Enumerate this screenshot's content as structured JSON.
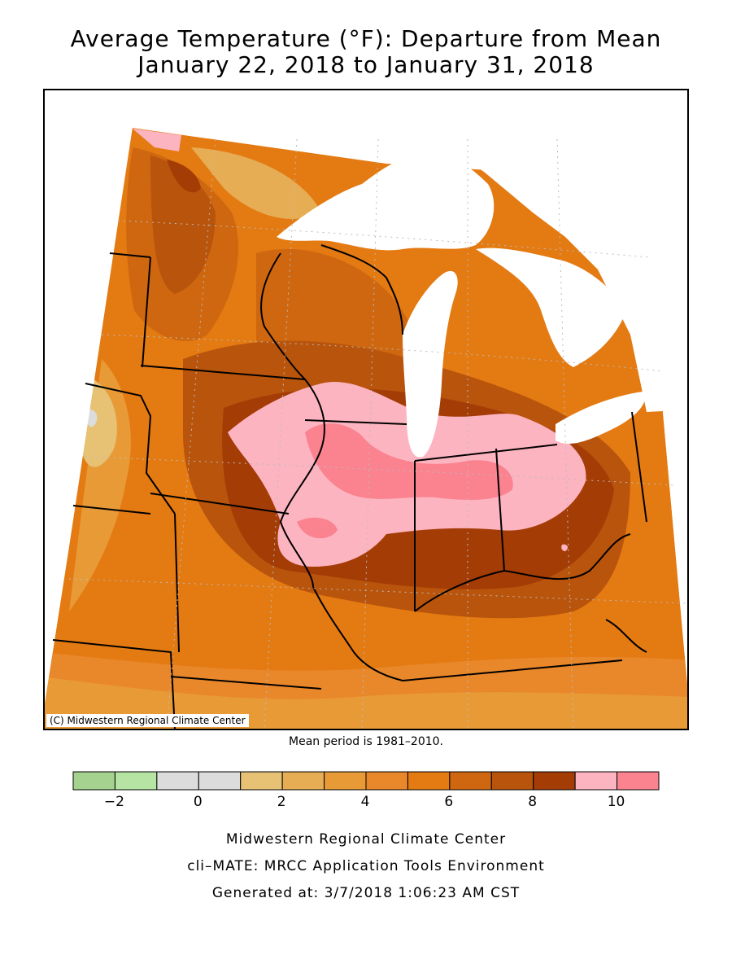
{
  "title": {
    "line1": "Average Temperature (°F): Departure from Mean",
    "line2": "January 22, 2018 to January 31, 2018"
  },
  "map": {
    "copyright": "(C) Midwestern Regional Climate Center",
    "mean_period": "Mean period is 1981–2010.",
    "colors": {
      "d5": "#e7c274",
      "d6": "#e6ad55",
      "d7": "#e89a37",
      "d8": "#e9872b",
      "d9": "#e47a12",
      "d10": "#cf6710",
      "d11": "#b9540c",
      "d12": "#a43c06",
      "d13": "#fdb4c1",
      "d14": "#fb8390",
      "lake": "#ffffff",
      "gray": "#dcdcdc"
    }
  },
  "legend": {
    "bins": [
      {
        "from": -3,
        "to": -2,
        "color": "#a5d28f"
      },
      {
        "from": -2,
        "to": -1,
        "color": "#b6e4a2"
      },
      {
        "from": -1,
        "to": 0,
        "color": "#dcdcdc"
      },
      {
        "from": 0,
        "to": 1,
        "color": "#dcdcdc"
      },
      {
        "from": 1,
        "to": 2,
        "color": "#e7c274"
      },
      {
        "from": 2,
        "to": 3,
        "color": "#e6ad55"
      },
      {
        "from": 3,
        "to": 4,
        "color": "#e89a37"
      },
      {
        "from": 4,
        "to": 5,
        "color": "#e9872b"
      },
      {
        "from": 5,
        "to": 6,
        "color": "#e47a12"
      },
      {
        "from": 6,
        "to": 7,
        "color": "#cf6710"
      },
      {
        "from": 7,
        "to": 8,
        "color": "#b9540c"
      },
      {
        "from": 8,
        "to": 9,
        "color": "#a43c06"
      },
      {
        "from": 9,
        "to": 10,
        "color": "#fdb4c1"
      },
      {
        "from": 10,
        "to": 11,
        "color": "#fb8390"
      }
    ],
    "range": [
      -3,
      11
    ],
    "tick_values": [
      -2,
      0,
      2,
      4,
      6,
      8,
      10
    ],
    "tick_labels": [
      "−2",
      "0",
      "2",
      "4",
      "6",
      "8",
      "10"
    ]
  },
  "footer": {
    "line1": "Midwestern Regional Climate Center",
    "line2": "cli–MATE: MRCC Application Tools Environment",
    "line3": "Generated at: 3/7/2018 1:06:23 AM CST"
  }
}
